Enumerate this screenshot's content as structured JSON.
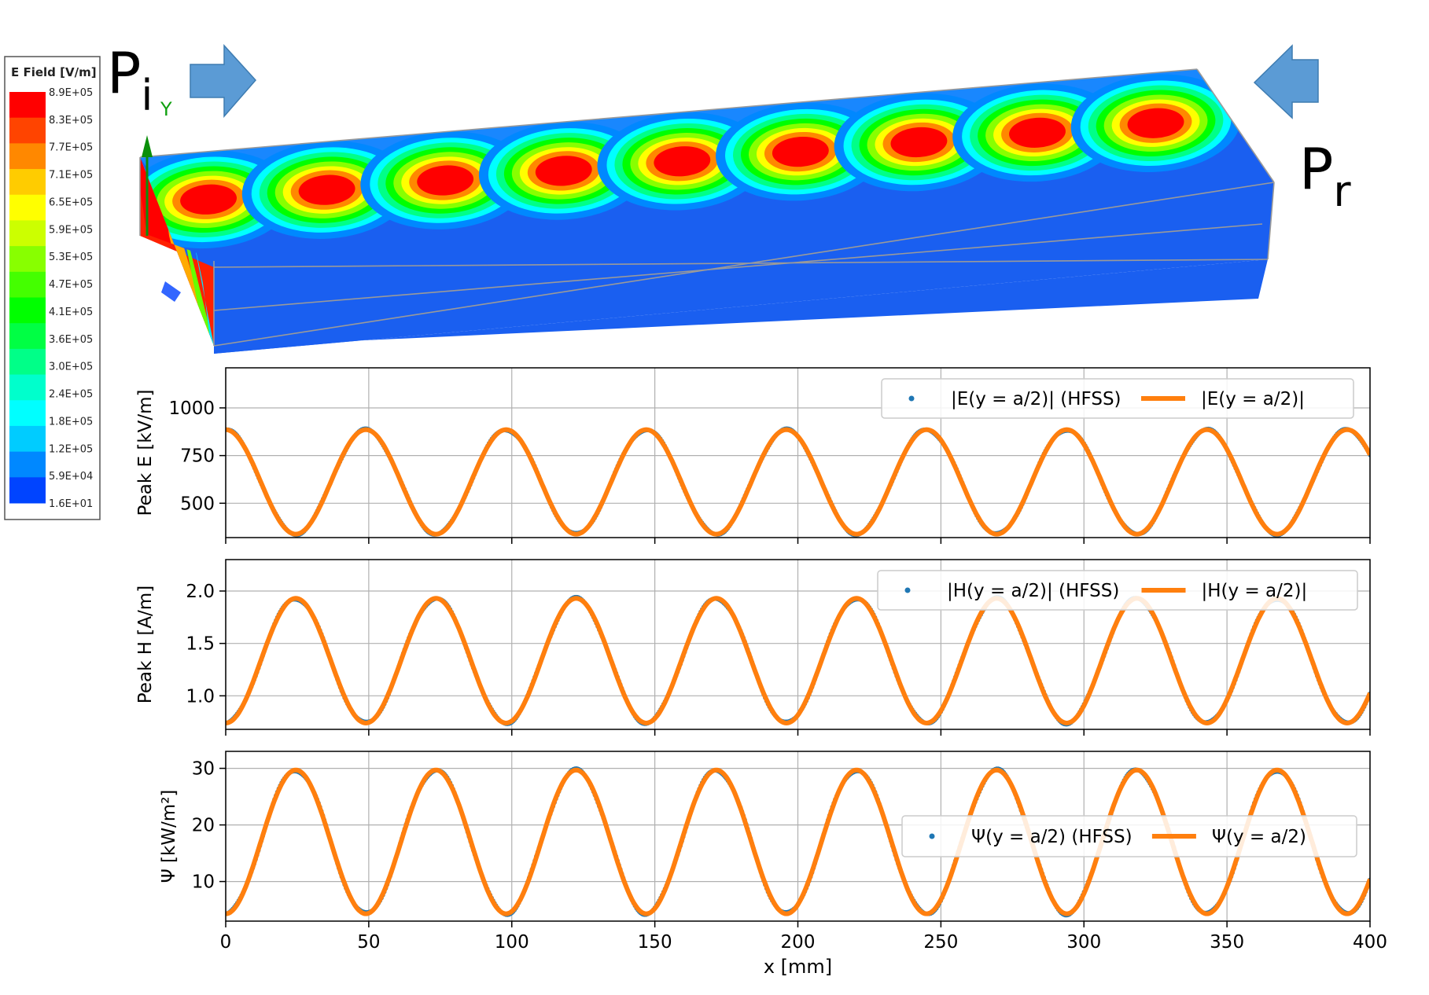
{
  "colors": {
    "hfss": "#1f77b4",
    "analytic": "#ff7f0e",
    "grid": "#b0b0b0",
    "arrow": "#5b9bd5",
    "colormap": [
      "#ff0000",
      "#ff4400",
      "#ff8800",
      "#ffcc00",
      "#ffff00",
      "#ccff00",
      "#88ff00",
      "#44ff00",
      "#00ff00",
      "#00ff44",
      "#00ff88",
      "#00ffcc",
      "#00ffff",
      "#00ccff",
      "#0088ff",
      "#0044ff",
      "#0000ff"
    ]
  },
  "field_plot": {
    "legend_title": "E Field [V/m]",
    "legend_values": [
      "8.9E+05",
      "8.3E+05",
      "7.7E+05",
      "7.1E+05",
      "6.5E+05",
      "5.9E+05",
      "5.3E+05",
      "4.7E+05",
      "4.1E+05",
      "3.6E+05",
      "3.0E+05",
      "2.4E+05",
      "1.8E+05",
      "1.2E+05",
      "5.9E+04",
      "1.6E+01"
    ],
    "port_in_label": "P",
    "port_in_sub": "i",
    "port_out_label": "P",
    "port_out_sub": "r",
    "axis_label": "Y"
  },
  "chart_data": [
    {
      "type": "line",
      "ylabel": "Peak E [kV/m]",
      "xlim": [
        0,
        400
      ],
      "ylim": [
        320,
        1210
      ],
      "yticks": [
        500,
        750,
        1000
      ],
      "grid": true,
      "legend_placement": "top-right",
      "x_period": 49,
      "series": [
        {
          "name": "|E(y = a/2)| (HFSS)",
          "style": "dots",
          "min": 338,
          "max": 886,
          "phase_x": 0
        },
        {
          "name": "|E(y = a/2)|",
          "style": "line",
          "min": 338,
          "max": 886,
          "phase_x": 0
        }
      ]
    },
    {
      "type": "line",
      "ylabel": "Peak H [A/m]",
      "xlim": [
        0,
        400
      ],
      "ylim": [
        0.68,
        2.3
      ],
      "yticks": [
        1.0,
        1.5,
        2.0
      ],
      "grid": true,
      "legend_placement": "top-right",
      "x_period": 49,
      "series": [
        {
          "name": "|H(y = a/2)| (HFSS)",
          "style": "dots",
          "min": 0.74,
          "max": 1.93,
          "phase_x": 24.5
        },
        {
          "name": "|H(y = a/2)|",
          "style": "line",
          "min": 0.74,
          "max": 1.93,
          "phase_x": 24.5
        }
      ]
    },
    {
      "type": "line",
      "ylabel": "Ψ [kW/m²]",
      "xlabel": "x [mm]",
      "xlim": [
        0,
        400
      ],
      "ylim": [
        3,
        33
      ],
      "yticks": [
        10,
        20,
        30
      ],
      "xticks": [
        0,
        50,
        100,
        150,
        200,
        250,
        300,
        350,
        400
      ],
      "grid": true,
      "legend_placement": "center-right",
      "x_period": 49,
      "series": [
        {
          "name": "Ψ(y = a/2) (HFSS)",
          "style": "dots",
          "min": 4.3,
          "max": 29.7,
          "phase_x": 24.5
        },
        {
          "name": "Ψ(y = a/2)",
          "style": "line",
          "min": 4.3,
          "max": 29.7,
          "phase_x": 24.5
        }
      ]
    }
  ]
}
